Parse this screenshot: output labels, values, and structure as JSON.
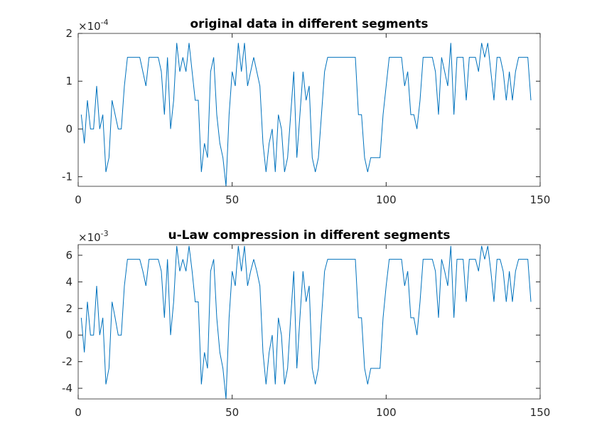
{
  "chart_data": [
    {
      "type": "line",
      "title": "original data in different segments",
      "exponent_label": {
        "base": "×10",
        "power": "-4"
      },
      "x": [
        1,
        2,
        3,
        4,
        5,
        6,
        7,
        8,
        9,
        10,
        11,
        12,
        13,
        14,
        15,
        16,
        17,
        18,
        19,
        20,
        21,
        22,
        23,
        24,
        25,
        26,
        27,
        28,
        29,
        30,
        31,
        32,
        33,
        34,
        35,
        36,
        37,
        38,
        39,
        40,
        41,
        42,
        43,
        44,
        45,
        46,
        47,
        48,
        49,
        50,
        51,
        52,
        53,
        54,
        55,
        56,
        57,
        58,
        59,
        60,
        61,
        62,
        63,
        64,
        65,
        66,
        67,
        68,
        69,
        70,
        71,
        72,
        73,
        74,
        75,
        76,
        77,
        78,
        79,
        80,
        81,
        82,
        83,
        84,
        85,
        86,
        87,
        88,
        89,
        90,
        91,
        92,
        93,
        94,
        95,
        96,
        97,
        98,
        99,
        100,
        101,
        102,
        103,
        104,
        105,
        106,
        107,
        108,
        109,
        110,
        111,
        112,
        113,
        114,
        115,
        116,
        117,
        118,
        119,
        120,
        121,
        122,
        123,
        124,
        125,
        126,
        127,
        128,
        129,
        130,
        131,
        132,
        133,
        134,
        135,
        136,
        137,
        138,
        139,
        140,
        141,
        142,
        143,
        144,
        145,
        146,
        147
      ],
      "series": [
        {
          "color": "#0072bd",
          "values": [
            0.3,
            -0.3,
            0.6,
            0,
            0,
            0.9,
            0,
            0.3,
            -0.9,
            -0.6,
            0.6,
            0.3,
            0,
            0,
            0.9,
            1.5,
            1.5,
            1.5,
            1.5,
            1.5,
            1.2,
            0.9,
            1.5,
            1.5,
            1.5,
            1.5,
            1.2,
            0.3,
            1.5,
            0,
            0.6,
            1.8,
            1.2,
            1.5,
            1.2,
            1.8,
            1.2,
            0.6,
            0.6,
            -0.9,
            -0.3,
            -0.6,
            1.2,
            1.5,
            0.3,
            -0.3,
            -0.6,
            -1.2,
            0.3,
            1.2,
            0.9,
            1.8,
            1.2,
            1.8,
            0.9,
            1.2,
            1.5,
            1.2,
            0.9,
            -0.3,
            -0.9,
            -0.3,
            0,
            -0.9,
            0.3,
            0,
            -0.9,
            -0.6,
            0.3,
            1.2,
            -0.6,
            0.3,
            1.2,
            0.6,
            0.9,
            -0.6,
            -0.9,
            -0.6,
            0.3,
            1.2,
            1.5,
            1.5,
            1.5,
            1.5,
            1.5,
            1.5,
            1.5,
            1.5,
            1.5,
            1.5,
            0.3,
            0.3,
            -0.6,
            -0.9,
            -0.6,
            -0.6,
            -0.6,
            -0.6,
            0.3,
            0.9,
            1.5,
            1.5,
            1.5,
            1.5,
            1.5,
            0.9,
            1.2,
            0.3,
            0.3,
            0,
            0.6,
            1.5,
            1.5,
            1.5,
            1.5,
            1.2,
            0.3,
            1.5,
            1.2,
            0.9,
            1.8,
            0.3,
            1.5,
            1.5,
            1.5,
            0.6,
            1.5,
            1.5,
            1.5,
            1.2,
            1.8,
            1.5,
            1.8,
            1.2,
            0.6,
            1.5,
            1.5,
            1.2,
            0.6,
            1.2,
            0.6,
            1.2,
            1.5,
            1.5,
            1.5,
            1.5,
            0.6
          ]
        }
      ],
      "xlim": [
        0,
        150
      ],
      "xticks": [
        0,
        50,
        100,
        150
      ],
      "ylim": [
        -1.2,
        2
      ],
      "yticks": [
        -1,
        0,
        1,
        2
      ]
    },
    {
      "type": "line",
      "title": "u-Law compression in different segments",
      "exponent_label": {
        "base": "×10",
        "power": "-3"
      },
      "x": [
        1,
        2,
        3,
        4,
        5,
        6,
        7,
        8,
        9,
        10,
        11,
        12,
        13,
        14,
        15,
        16,
        17,
        18,
        19,
        20,
        21,
        22,
        23,
        24,
        25,
        26,
        27,
        28,
        29,
        30,
        31,
        32,
        33,
        34,
        35,
        36,
        37,
        38,
        39,
        40,
        41,
        42,
        43,
        44,
        45,
        46,
        47,
        48,
        49,
        50,
        51,
        52,
        53,
        54,
        55,
        56,
        57,
        58,
        59,
        60,
        61,
        62,
        63,
        64,
        65,
        66,
        67,
        68,
        69,
        70,
        71,
        72,
        73,
        74,
        75,
        76,
        77,
        78,
        79,
        80,
        81,
        82,
        83,
        84,
        85,
        86,
        87,
        88,
        89,
        90,
        91,
        92,
        93,
        94,
        95,
        96,
        97,
        98,
        99,
        100,
        101,
        102,
        103,
        104,
        105,
        106,
        107,
        108,
        109,
        110,
        111,
        112,
        113,
        114,
        115,
        116,
        117,
        118,
        119,
        120,
        121,
        122,
        123,
        124,
        125,
        126,
        127,
        128,
        129,
        130,
        131,
        132,
        133,
        134,
        135,
        136,
        137,
        138,
        139,
        140,
        141,
        142,
        143,
        144,
        145,
        146,
        147
      ],
      "series": [
        {
          "color": "#0072bd",
          "values": [
            1.3,
            -1.3,
            2.5,
            0,
            0,
            3.7,
            0,
            1.3,
            -3.7,
            -2.5,
            2.5,
            1.3,
            0,
            0,
            3.7,
            5.7,
            5.7,
            5.7,
            5.7,
            5.7,
            4.8,
            3.7,
            5.7,
            5.7,
            5.7,
            5.7,
            4.8,
            1.3,
            5.7,
            0,
            2.5,
            6.7,
            4.8,
            5.7,
            4.8,
            6.7,
            4.8,
            2.5,
            2.5,
            -3.7,
            -1.3,
            -2.5,
            4.8,
            5.7,
            1.3,
            -1.3,
            -2.5,
            -4.8,
            1.3,
            4.8,
            3.7,
            6.7,
            4.8,
            6.7,
            3.7,
            4.8,
            5.7,
            4.8,
            3.7,
            -1.3,
            -3.7,
            -1.3,
            0,
            -3.7,
            1.3,
            0,
            -3.7,
            -2.5,
            1.3,
            4.8,
            -2.5,
            1.3,
            4.8,
            2.5,
            3.7,
            -2.5,
            -3.7,
            -2.5,
            1.3,
            4.8,
            5.7,
            5.7,
            5.7,
            5.7,
            5.7,
            5.7,
            5.7,
            5.7,
            5.7,
            5.7,
            1.3,
            1.3,
            -2.5,
            -3.7,
            -2.5,
            -2.5,
            -2.5,
            -2.5,
            1.3,
            3.7,
            5.7,
            5.7,
            5.7,
            5.7,
            5.7,
            3.7,
            4.8,
            1.3,
            1.3,
            0,
            2.5,
            5.7,
            5.7,
            5.7,
            5.7,
            4.8,
            1.3,
            5.7,
            4.8,
            3.7,
            6.7,
            1.3,
            5.7,
            5.7,
            5.7,
            2.5,
            5.7,
            5.7,
            5.7,
            4.8,
            6.7,
            5.7,
            6.7,
            4.8,
            2.5,
            5.7,
            5.7,
            4.8,
            2.5,
            4.8,
            2.5,
            4.8,
            5.7,
            5.7,
            5.7,
            5.7,
            2.5
          ]
        }
      ],
      "xlim": [
        0,
        150
      ],
      "xticks": [
        0,
        50,
        100,
        150
      ],
      "ylim": [
        -4.8,
        6.8
      ],
      "yticks": [
        -4,
        -2,
        0,
        2,
        4,
        6
      ]
    }
  ]
}
